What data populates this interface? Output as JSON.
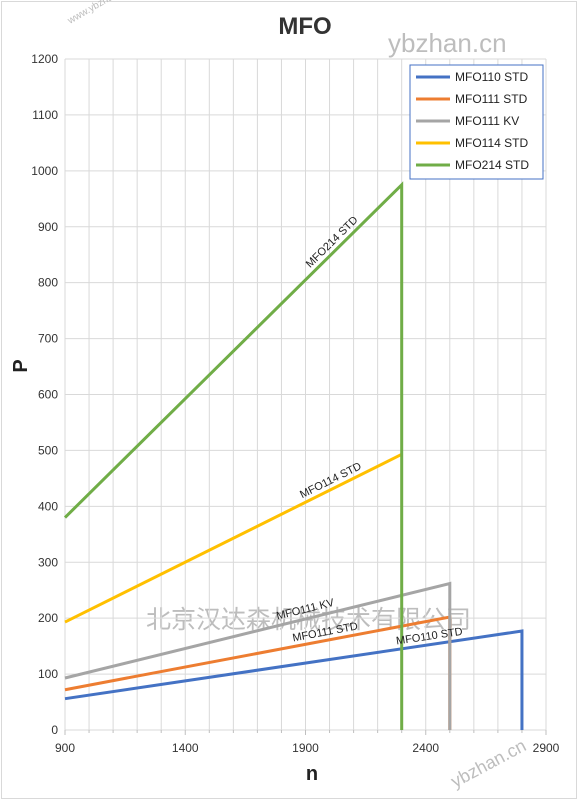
{
  "chart_data": {
    "type": "line",
    "title": "MFO",
    "xlabel": "n",
    "ylabel": "P",
    "xlim": [
      900,
      2900
    ],
    "ylim": [
      0,
      1200
    ],
    "xticks": [
      900,
      1400,
      1900,
      2400,
      2900
    ],
    "yticks": [
      0,
      100,
      200,
      300,
      400,
      500,
      600,
      700,
      800,
      900,
      1000,
      1100,
      1200
    ],
    "grid": true,
    "legend_position": "top-right",
    "series": [
      {
        "name": "MFO110 STD",
        "color": "#4472c4",
        "x": [
          900,
          2800,
          2800
        ],
        "y": [
          56,
          177,
          0
        ],
        "label": "MFO110 STD"
      },
      {
        "name": "MFO111 STD",
        "color": "#ed7d31",
        "x": [
          900,
          2500,
          2500
        ],
        "y": [
          72,
          202,
          0
        ],
        "label": "MFO111 STD"
      },
      {
        "name": "MFO111 KV",
        "color": "#a5a5a5",
        "x": [
          900,
          2500,
          2500
        ],
        "y": [
          93,
          262,
          0
        ],
        "label": "MFO111 KV"
      },
      {
        "name": "MFO114 STD",
        "color": "#ffc000",
        "x": [
          900,
          2300
        ],
        "y": [
          193,
          493
        ],
        "label": "MFO114 STD"
      },
      {
        "name": "MFO214 STD",
        "color": "#70ad47",
        "x": [
          900,
          2300,
          2300
        ],
        "y": [
          380,
          975,
          0
        ],
        "label": "MFO214 STD"
      }
    ]
  },
  "watermarks": [
    "ybzhan.cn",
    "北京汉达森机械技术有限公司",
    "www.ybzhan.cn",
    "ybzhan.cn"
  ]
}
